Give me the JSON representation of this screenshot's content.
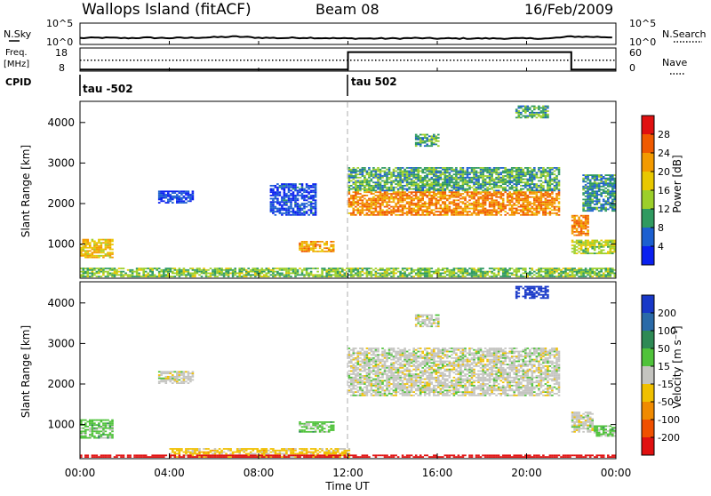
{
  "header": {
    "site": "Wallops Island (fitACF)",
    "beam": "Beam 08",
    "date": "16/Feb/2009"
  },
  "strips": {
    "nsky_label": "N.Sky",
    "nsky_ticks": [
      "10^5",
      "10^0"
    ],
    "nsearch_label": "N.Search",
    "nsearch_ticks": [
      "10^5",
      "10^0"
    ],
    "freq_label_1": "Freq.",
    "freq_label_2": "[MHz]",
    "freq_ticks": [
      "18",
      "8"
    ],
    "nave_label": "Nave",
    "nave_ticks": [
      "60",
      "0"
    ],
    "cpid_label": "CPID",
    "cpid_segments": [
      "tau -502",
      "tau 502"
    ]
  },
  "axes": {
    "slant_range_label": "Slant Range [km]",
    "x_ticks": [
      "00:00",
      "04:00",
      "08:00",
      "12:00",
      "16:00",
      "20:00",
      "00:00"
    ],
    "x_label": "Time UT"
  },
  "power_colorbar": {
    "label": "Power [dB]",
    "ticks": [
      "28",
      "24",
      "20",
      "16",
      "12",
      "8",
      "4"
    ],
    "colors": [
      "#e01010",
      "#f05a00",
      "#f39a00",
      "#e8c800",
      "#9ccf2a",
      "#2f9a60",
      "#1c5fd0",
      "#0a20f0"
    ]
  },
  "velocity_colorbar": {
    "label": "Velocity [m s⁻¹]",
    "ticks": [
      "200",
      "100",
      "50",
      "15",
      "-15",
      "-50",
      "-100",
      "-200"
    ],
    "colors": [
      "#1838c8",
      "#2a6aa8",
      "#2e8a55",
      "#4fc23a",
      "#c4c4c0",
      "#f0c000",
      "#f08a00",
      "#f05000",
      "#e01010"
    ]
  },
  "chart_data": [
    {
      "type": "line",
      "name": "N.Sky / N.Search strip",
      "x_range": [
        0,
        24
      ],
      "y_range_log10": [
        0,
        5
      ],
      "series": [
        {
          "x": [
            0,
            1,
            2,
            3,
            4,
            5,
            6,
            7,
            8,
            9,
            10,
            11,
            12,
            13,
            14,
            15,
            16,
            17,
            18,
            19,
            20,
            21,
            22,
            23,
            24
          ],
          "y_log10": [
            1.4,
            1.5,
            1.4,
            1.5,
            1.4,
            1.5,
            1.6,
            1.8,
            1.5,
            1.4,
            1.5,
            1.4,
            1.3,
            1.3,
            1.3,
            1.4,
            1.3,
            1.3,
            1.3,
            1.3,
            1.3,
            1.3,
            1.8,
            1.7,
            1.6
          ]
        }
      ]
    },
    {
      "type": "line",
      "name": "Frequency / Nave strip",
      "x_range": [
        0,
        24
      ],
      "freq_range_mhz": [
        8,
        18
      ],
      "series": [
        {
          "x": [
            0,
            12,
            12,
            22,
            22,
            24
          ],
          "freq_mhz": [
            8.3,
            8.3,
            16.5,
            16.5,
            8.3,
            8.3
          ]
        },
        {
          "x": [
            0,
            24
          ],
          "nave": [
            28,
            28
          ]
        }
      ]
    },
    {
      "type": "heatmap",
      "name": "Power",
      "x_range": [
        0,
        24
      ],
      "y_range": [
        180,
        4500
      ],
      "z_range": [
        0,
        30
      ],
      "regions": [
        {
          "t": [
            0.0,
            1.5
          ],
          "r": [
            650,
            1100
          ],
          "z": 18
        },
        {
          "t": [
            3.5,
            5.0
          ],
          "r": [
            2000,
            2300
          ],
          "z": 3
        },
        {
          "t": [
            8.5,
            10.5
          ],
          "r": [
            1700,
            2500
          ],
          "z": 4
        },
        {
          "t": [
            9.8,
            11.3
          ],
          "r": [
            800,
            1050
          ],
          "z": 20
        },
        {
          "t": [
            12.0,
            21.5
          ],
          "r": [
            2300,
            2900
          ],
          "z": 10
        },
        {
          "t": [
            12.0,
            21.5
          ],
          "r": [
            1700,
            2300
          ],
          "z": 22
        },
        {
          "t": [
            15.0,
            16.0
          ],
          "r": [
            3400,
            3700
          ],
          "z": 10
        },
        {
          "t": [
            19.5,
            21.0
          ],
          "r": [
            4100,
            4400
          ],
          "z": 10
        },
        {
          "t": [
            22.0,
            24.0
          ],
          "r": [
            750,
            1100
          ],
          "z": 14
        },
        {
          "t": [
            22.0,
            22.8
          ],
          "r": [
            1200,
            1700
          ],
          "z": 22
        },
        {
          "t": [
            22.5,
            24.0
          ],
          "r": [
            1800,
            2700
          ],
          "z": 8
        },
        {
          "t": [
            0.0,
            24.0
          ],
          "r": [
            180,
            420
          ],
          "z": 12
        }
      ]
    },
    {
      "type": "heatmap",
      "name": "Velocity",
      "x_range": [
        0,
        24
      ],
      "y_range": [
        180,
        4500
      ],
      "z_range": [
        -200,
        200
      ],
      "regions": [
        {
          "t": [
            0.0,
            1.5
          ],
          "r": [
            650,
            1100
          ],
          "z": 40
        },
        {
          "t": [
            3.5,
            5.0
          ],
          "r": [
            2000,
            2300
          ],
          "z": 0
        },
        {
          "t": [
            9.8,
            11.3
          ],
          "r": [
            800,
            1050
          ],
          "z": 40
        },
        {
          "t": [
            12.0,
            21.5
          ],
          "r": [
            1700,
            2900
          ],
          "z": 0
        },
        {
          "t": [
            15.0,
            16.0
          ],
          "r": [
            3400,
            3700
          ],
          "z": 0
        },
        {
          "t": [
            19.5,
            21.0
          ],
          "r": [
            4100,
            4400
          ],
          "z": 200
        },
        {
          "t": [
            22.0,
            23.0
          ],
          "r": [
            800,
            1300
          ],
          "z": 0
        },
        {
          "t": [
            23.0,
            24.0
          ],
          "r": [
            700,
            950
          ],
          "z": 40
        },
        {
          "t": [
            4.0,
            12.0
          ],
          "r": [
            180,
            420
          ],
          "z": -40
        },
        {
          "t": [
            0.0,
            24.0
          ],
          "r": [
            180,
            250
          ],
          "z": -200
        }
      ]
    }
  ]
}
